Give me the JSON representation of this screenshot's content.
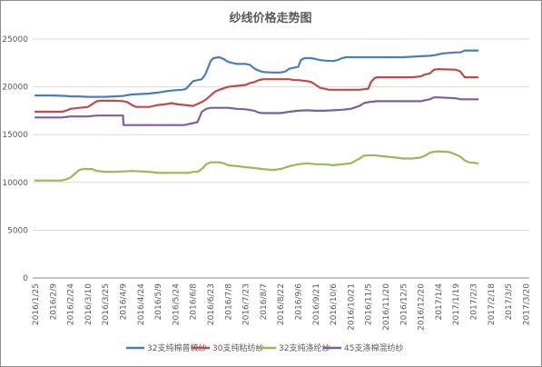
{
  "chart_data": {
    "type": "line",
    "title": "纱线价格走势图",
    "xlabel": "",
    "ylabel": "",
    "ylim": [
      0,
      25000
    ],
    "yticks": [
      0,
      5000,
      10000,
      15000,
      20000,
      25000
    ],
    "grid": true,
    "legend_position": "bottom",
    "x_tick_labels": [
      "2016/1/25",
      "2016/2/9",
      "2016/2/24",
      "2016/3/10",
      "2016/3/25",
      "2016/4/9",
      "2016/4/24",
      "2016/5/9",
      "2016/5/24",
      "2016/6/8",
      "2016/6/23",
      "2016/7/8",
      "2016/7/23",
      "2016/8/7",
      "2016/8/22",
      "2016/9/6",
      "2016/9/21",
      "2016/10/6",
      "2016/10/21",
      "2016/11/5",
      "2016/11/20",
      "2016/12/5",
      "2016/12/20",
      "2017/1/4",
      "2017/1/19",
      "2017/2/3",
      "2017/2/18",
      "2017/3/5",
      "2017/3/20"
    ],
    "series": [
      {
        "name": "32支纯棉普梳纱",
        "color": "#4a7ebb",
        "points": [
          [
            0,
            19100
          ],
          [
            2,
            19100
          ],
          [
            3.5,
            19050
          ],
          [
            4,
            19000
          ],
          [
            5,
            19000
          ],
          [
            6,
            18950
          ],
          [
            7,
            18950
          ],
          [
            8,
            18950
          ],
          [
            9,
            19000
          ],
          [
            10,
            19050
          ],
          [
            11,
            19200
          ],
          [
            12,
            19250
          ],
          [
            13,
            19300
          ],
          [
            14,
            19400
          ],
          [
            15,
            19550
          ],
          [
            16,
            19650
          ],
          [
            16.8,
            19700
          ],
          [
            17.2,
            19800
          ],
          [
            18,
            20600
          ],
          [
            19,
            20800
          ],
          [
            19.4,
            21300
          ],
          [
            20,
            22700
          ],
          [
            20.3,
            23000
          ],
          [
            21,
            23100
          ],
          [
            21.5,
            22900
          ],
          [
            22,
            22600
          ],
          [
            22.5,
            22500
          ],
          [
            23,
            22400
          ],
          [
            24,
            22400
          ],
          [
            24.5,
            22300
          ],
          [
            25,
            21900
          ],
          [
            25.5,
            21700
          ],
          [
            26,
            21550
          ],
          [
            27,
            21500
          ],
          [
            28,
            21500
          ],
          [
            28.5,
            21600
          ],
          [
            29,
            21900
          ],
          [
            29.5,
            22000
          ],
          [
            30,
            22100
          ],
          [
            30.3,
            22800
          ],
          [
            30.7,
            23000
          ],
          [
            31.5,
            23000
          ],
          [
            32,
            22900
          ],
          [
            32.5,
            22800
          ],
          [
            33,
            22750
          ],
          [
            34,
            22700
          ],
          [
            34.5,
            22800
          ],
          [
            35,
            23000
          ],
          [
            35.5,
            23100
          ],
          [
            36,
            23100
          ],
          [
            40,
            23100
          ],
          [
            42,
            23100
          ],
          [
            44,
            23200
          ],
          [
            45,
            23250
          ],
          [
            45.5,
            23300
          ],
          [
            46,
            23400
          ],
          [
            46.5,
            23500
          ],
          [
            48,
            23600
          ],
          [
            48.5,
            23600
          ],
          [
            49,
            23800
          ],
          [
            50.5,
            23800
          ]
        ]
      },
      {
        "name": "30支纯粘纺纱",
        "color": "#be4b48",
        "points": [
          [
            0,
            17400
          ],
          [
            2,
            17400
          ],
          [
            3,
            17400
          ],
          [
            3.5,
            17500
          ],
          [
            4,
            17700
          ],
          [
            5,
            17800
          ],
          [
            6,
            17900
          ],
          [
            7,
            18500
          ],
          [
            7.5,
            18550
          ],
          [
            9,
            18550
          ],
          [
            10,
            18500
          ],
          [
            10.5,
            18400
          ],
          [
            11,
            18100
          ],
          [
            11.5,
            17900
          ],
          [
            13,
            17900
          ],
          [
            14,
            18100
          ],
          [
            15,
            18200
          ],
          [
            15.5,
            18300
          ],
          [
            16,
            18200
          ],
          [
            17,
            18100
          ],
          [
            18,
            18000
          ],
          [
            18.5,
            18200
          ],
          [
            19,
            18400
          ],
          [
            19.5,
            18700
          ],
          [
            20,
            19100
          ],
          [
            20.5,
            19500
          ],
          [
            21,
            19700
          ],
          [
            22,
            20000
          ],
          [
            23,
            20100
          ],
          [
            24,
            20200
          ],
          [
            24.5,
            20400
          ],
          [
            25,
            20500
          ],
          [
            25.5,
            20700
          ],
          [
            26,
            20800
          ],
          [
            28,
            20800
          ],
          [
            29,
            20800
          ],
          [
            29.5,
            20700
          ],
          [
            30,
            20700
          ],
          [
            31,
            20600
          ],
          [
            31.5,
            20500
          ],
          [
            32,
            20200
          ],
          [
            32.5,
            19900
          ],
          [
            33,
            19800
          ],
          [
            33.5,
            19700
          ],
          [
            35,
            19700
          ],
          [
            37,
            19700
          ],
          [
            38,
            19800
          ],
          [
            38.3,
            20500
          ],
          [
            38.7,
            20900
          ],
          [
            39,
            21000
          ],
          [
            40,
            21000
          ],
          [
            42,
            21000
          ],
          [
            43,
            21000
          ],
          [
            44,
            21100
          ],
          [
            44.5,
            21300
          ],
          [
            45,
            21400
          ],
          [
            45.5,
            21800
          ],
          [
            46,
            21850
          ],
          [
            48,
            21800
          ],
          [
            48.5,
            21600
          ],
          [
            49,
            21000
          ],
          [
            50.5,
            21000
          ]
        ]
      },
      {
        "name": "32支纯涤纶纱",
        "color": "#98b954",
        "points": [
          [
            0,
            10200
          ],
          [
            2,
            10200
          ],
          [
            3,
            10200
          ],
          [
            3.5,
            10300
          ],
          [
            4,
            10500
          ],
          [
            4.5,
            10900
          ],
          [
            5,
            11300
          ],
          [
            5.5,
            11400
          ],
          [
            6.5,
            11400
          ],
          [
            7,
            11200
          ],
          [
            7.5,
            11150
          ],
          [
            8,
            11100
          ],
          [
            9,
            11100
          ],
          [
            10,
            11150
          ],
          [
            11,
            11200
          ],
          [
            13,
            11100
          ],
          [
            14,
            11000
          ],
          [
            15,
            11000
          ],
          [
            17,
            11000
          ],
          [
            17.5,
            11000
          ],
          [
            18,
            11100
          ],
          [
            18.5,
            11100
          ],
          [
            19,
            11400
          ],
          [
            19.5,
            11900
          ],
          [
            20,
            12100
          ],
          [
            21,
            12100
          ],
          [
            21.5,
            12000
          ],
          [
            22,
            11800
          ],
          [
            23,
            11700
          ],
          [
            24,
            11600
          ],
          [
            25,
            11500
          ],
          [
            26,
            11400
          ],
          [
            27,
            11300
          ],
          [
            28,
            11400
          ],
          [
            29,
            11700
          ],
          [
            30,
            11900
          ],
          [
            31,
            12000
          ],
          [
            32,
            11900
          ],
          [
            33,
            11900
          ],
          [
            34,
            11800
          ],
          [
            35,
            11900
          ],
          [
            36,
            12000
          ],
          [
            37,
            12500
          ],
          [
            37.5,
            12800
          ],
          [
            38.5,
            12850
          ],
          [
            39,
            12800
          ],
          [
            40,
            12700
          ],
          [
            41,
            12600
          ],
          [
            42,
            12500
          ],
          [
            43,
            12500
          ],
          [
            44,
            12600
          ],
          [
            44.5,
            12800
          ],
          [
            45,
            13100
          ],
          [
            45.5,
            13200
          ],
          [
            46,
            13250
          ],
          [
            47,
            13200
          ],
          [
            47.5,
            13100
          ],
          [
            48,
            12900
          ],
          [
            48.5,
            12700
          ],
          [
            49,
            12300
          ],
          [
            49.5,
            12100
          ],
          [
            50.5,
            12000
          ]
        ]
      },
      {
        "name": "45支涤棉混纺纱",
        "color": "#7d5fa0",
        "points": [
          [
            0,
            16800
          ],
          [
            3,
            16800
          ],
          [
            4,
            16900
          ],
          [
            6,
            16900
          ],
          [
            7,
            17000
          ],
          [
            9,
            17000
          ],
          [
            10,
            17000
          ],
          [
            10.05,
            16000
          ],
          [
            13,
            16000
          ],
          [
            15,
            16000
          ],
          [
            17,
            16000
          ],
          [
            17.5,
            16100
          ],
          [
            18,
            16200
          ],
          [
            18.5,
            16300
          ],
          [
            19,
            17400
          ],
          [
            19.5,
            17700
          ],
          [
            20,
            17800
          ],
          [
            22,
            17800
          ],
          [
            23,
            17700
          ],
          [
            24,
            17650
          ],
          [
            25,
            17500
          ],
          [
            25.5,
            17300
          ],
          [
            26,
            17250
          ],
          [
            28,
            17250
          ],
          [
            29,
            17400
          ],
          [
            30,
            17500
          ],
          [
            31,
            17550
          ],
          [
            32,
            17500
          ],
          [
            33,
            17500
          ],
          [
            34,
            17550
          ],
          [
            35,
            17600
          ],
          [
            36,
            17700
          ],
          [
            37,
            18000
          ],
          [
            37.5,
            18300
          ],
          [
            38,
            18400
          ],
          [
            39,
            18500
          ],
          [
            42,
            18500
          ],
          [
            44,
            18500
          ],
          [
            44.5,
            18600
          ],
          [
            45,
            18700
          ],
          [
            45.5,
            18900
          ],
          [
            46,
            18900
          ],
          [
            48,
            18800
          ],
          [
            48.5,
            18700
          ],
          [
            50.5,
            18700
          ]
        ]
      }
    ]
  }
}
